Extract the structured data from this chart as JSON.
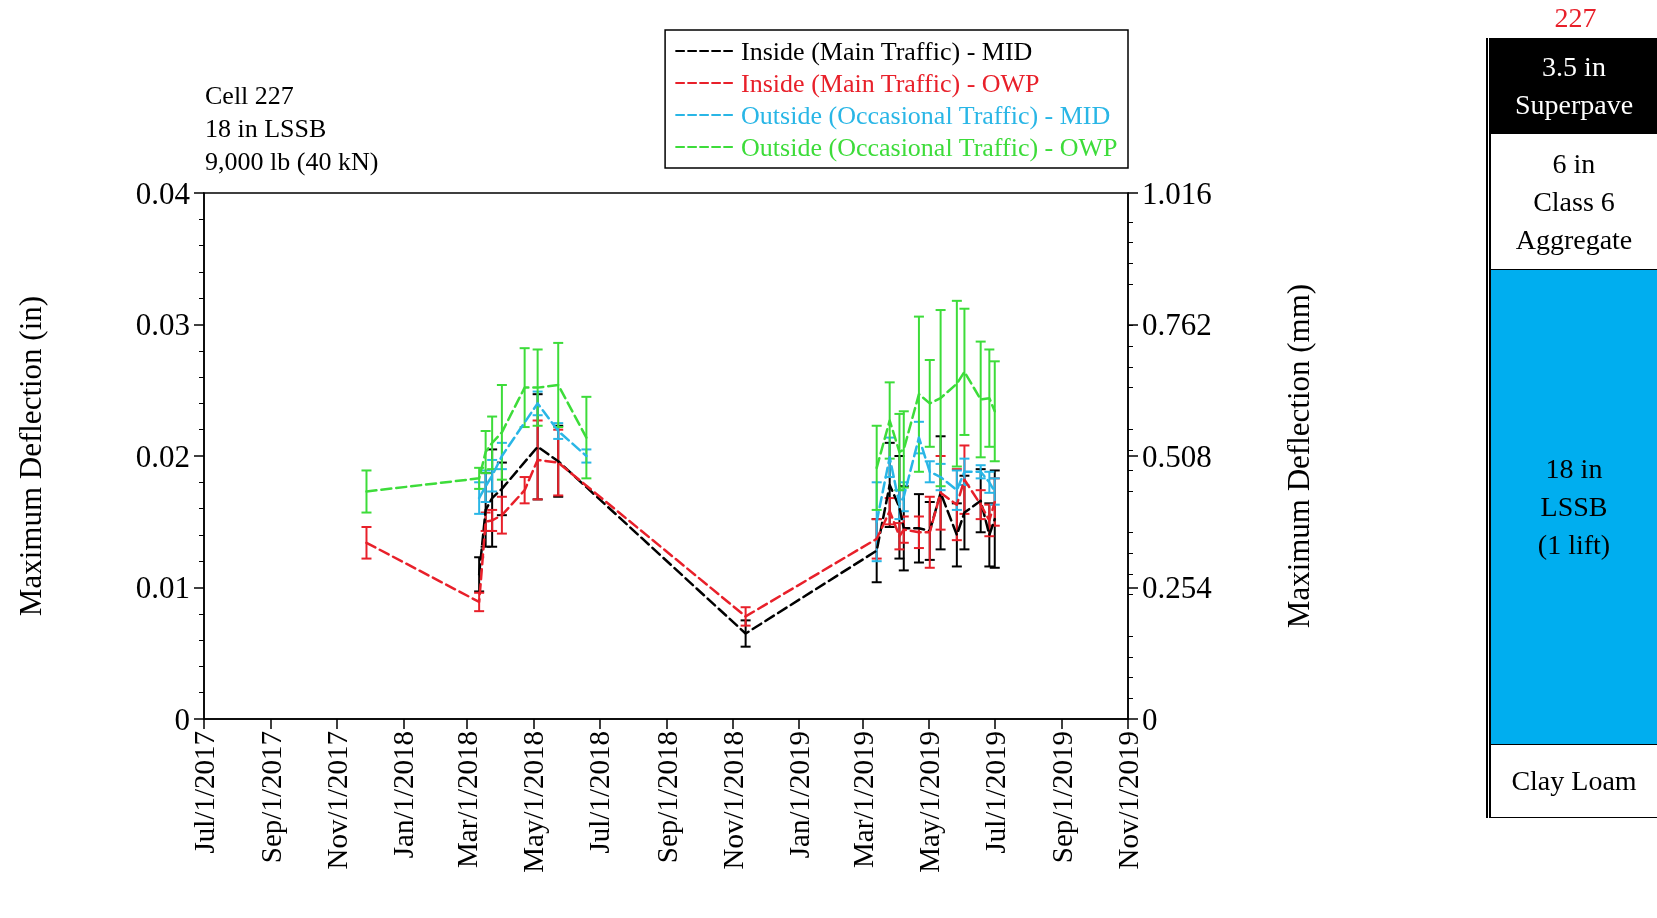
{
  "chart_data": [
    {
      "type": "line",
      "ylabel": "Maximum Deflection (in)",
      "y2label": "Maximum Deflection (mm)",
      "annotations": [
        "Cell 227",
        "18 in LSSB",
        "9,000 lb (40 kN)"
      ],
      "xlim": [
        "2017-07-01",
        "2019-11-01"
      ],
      "xticks": [
        {
          "value": "2017-07-01",
          "label": "Jul/1/2017"
        },
        {
          "value": "2017-09-01",
          "label": "Sep/1/2017"
        },
        {
          "value": "2017-11-01",
          "label": "Nov/1/2017"
        },
        {
          "value": "2018-01-01",
          "label": "Jan/1/2018"
        },
        {
          "value": "2018-03-01",
          "label": "Mar/1/2018"
        },
        {
          "value": "2018-05-01",
          "label": "May/1/2018"
        },
        {
          "value": "2018-07-01",
          "label": "Jul/1/2018"
        },
        {
          "value": "2018-09-01",
          "label": "Sep/1/2018"
        },
        {
          "value": "2018-11-01",
          "label": "Nov/1/2018"
        },
        {
          "value": "2019-01-01",
          "label": "Jan/1/2019"
        },
        {
          "value": "2019-03-01",
          "label": "Mar/1/2019"
        },
        {
          "value": "2019-05-01",
          "label": "May/1/2019"
        },
        {
          "value": "2019-07-01",
          "label": "Jul/1/2019"
        },
        {
          "value": "2019-09-01",
          "label": "Sep/1/2019"
        },
        {
          "value": "2019-11-01",
          "label": "Nov/1/2019"
        }
      ],
      "ylim": [
        0,
        0.04
      ],
      "yticks": [
        0,
        0.01,
        0.02,
        0.03,
        0.04
      ],
      "y2lim": [
        0,
        1.016
      ],
      "y2ticks": [
        0,
        0.254,
        0.508,
        0.762,
        1.016
      ],
      "legend": "top right",
      "marker": "none",
      "line_style": "dashed",
      "series": [
        {
          "name": "Inside (Main Traffic) - MID",
          "color": "#000000",
          "x": [
            "2018-03-12",
            "2018-03-18",
            "2018-03-24",
            "2018-04-02",
            "2018-05-05",
            "2018-05-24",
            "2018-11-13",
            "2019-03-14",
            "2019-03-26",
            "2019-04-04",
            "2019-04-08",
            "2019-04-22",
            "2019-05-02",
            "2019-05-12",
            "2019-05-27",
            "2019-06-03",
            "2019-06-18",
            "2019-06-26",
            "2019-07-01"
          ],
          "values": [
            0.011,
            0.0159,
            0.0168,
            0.0175,
            0.0207,
            0.0196,
            0.0065,
            0.0128,
            0.0178,
            0.0161,
            0.0145,
            0.0145,
            0.0143,
            0.0172,
            0.014,
            0.0157,
            0.0166,
            0.014,
            0.0152
          ],
          "errors": [
            0.0013,
            0.0028,
            0.0037,
            0.002,
            0.004,
            0.0027,
            0.001,
            0.0024,
            0.0032,
            0.0039,
            0.0032,
            0.0026,
            0.0022,
            0.0043,
            0.0024,
            0.0028,
            0.0024,
            0.0024,
            0.0037
          ]
        },
        {
          "name": "Inside (Main Traffic) - OWP",
          "color": "#e8202a",
          "x": [
            "2017-11-28",
            "2018-03-12",
            "2018-03-18",
            "2018-03-24",
            "2018-04-02",
            "2018-04-23",
            "2018-05-05",
            "2018-05-24",
            "2018-11-13",
            "2019-03-14",
            "2019-03-26",
            "2019-04-04",
            "2019-04-08",
            "2019-04-22",
            "2019-05-02",
            "2019-05-12",
            "2019-05-27",
            "2019-06-03",
            "2019-06-18",
            "2019-06-26",
            "2019-07-01"
          ],
          "values": [
            0.0134,
            0.0089,
            0.015,
            0.0151,
            0.0155,
            0.0174,
            0.0197,
            0.0195,
            0.0078,
            0.0137,
            0.0158,
            0.0139,
            0.0144,
            0.0142,
            0.0142,
            0.0172,
            0.0163,
            0.0182,
            0.0163,
            0.0151,
            0.0165
          ],
          "errors": [
            0.0012,
            0.0007,
            0.0007,
            0.0008,
            0.0014,
            0.001,
            0.003,
            0.0025,
            0.0007,
            0.0015,
            0.001,
            0.001,
            0.001,
            0.0012,
            0.0027,
            0.0028,
            0.0027,
            0.0026,
            0.0011,
            0.0012,
            0.0018
          ]
        },
        {
          "name": "Outside (Occasional Traffic) - MID",
          "color": "#29b6e6",
          "x": [
            "2018-03-12",
            "2018-03-18",
            "2018-03-24",
            "2018-04-02",
            "2018-05-05",
            "2018-05-24",
            "2018-06-19",
            "2018-11-13",
            "2019-03-14",
            "2019-03-26",
            "2019-04-04",
            "2019-04-08",
            "2019-04-22",
            "2019-05-02",
            "2019-05-12",
            "2019-05-27",
            "2019-06-03",
            "2019-06-18",
            "2019-06-26",
            "2019-07-01"
          ],
          "values": [
            0.0168,
            0.0177,
            0.0185,
            0.02,
            0.024,
            0.0219,
            0.02,
            null,
            0.015,
            0.0199,
            0.0163,
            0.0169,
            0.0214,
            0.0188,
            0.0184,
            0.0174,
            0.0188,
            0.0188,
            0.018,
            0.0173
          ],
          "errors": [
            0.0012,
            0.0012,
            0.0012,
            0.001,
            0.0009,
            0.0006,
            0.0005,
            null,
            0.003,
            0.0015,
            0.0011,
            0.0011,
            0.0012,
            0.0008,
            0.001,
            0.0015,
            0.001,
            0.0005,
            0.0008,
            0.001
          ]
        },
        {
          "name": "Outside (Occasional Traffic) - OWP",
          "color": "#3ddc3a",
          "x": [
            "2017-11-28",
            "2018-03-12",
            "2018-03-18",
            "2018-03-24",
            "2018-04-02",
            "2018-04-23",
            "2018-05-05",
            "2018-05-24",
            "2018-06-19",
            "2018-11-13",
            "2019-03-14",
            "2019-03-26",
            "2019-04-04",
            "2019-04-08",
            "2019-04-22",
            "2019-05-02",
            "2019-05-12",
            "2019-05-27",
            "2019-06-03",
            "2019-06-18",
            "2019-06-26",
            "2019-07-01"
          ],
          "values": [
            0.0173,
            0.0183,
            0.0203,
            0.021,
            0.0218,
            0.0252,
            0.0252,
            0.0254,
            0.0214,
            null,
            0.0191,
            0.0227,
            0.0203,
            0.0205,
            0.0247,
            0.024,
            0.0244,
            0.0255,
            0.0264,
            0.0243,
            0.0244,
            0.0234
          ],
          "errors": [
            0.0016,
            0.0008,
            0.0016,
            0.002,
            0.0036,
            0.003,
            0.0029,
            0.0032,
            0.0031,
            null,
            0.0032,
            0.0029,
            0.0029,
            0.0029,
            0.0059,
            0.0033,
            0.0067,
            0.0063,
            0.0048,
            0.0044,
            0.0037,
            0.0038
          ]
        }
      ]
    },
    {
      "type": "other",
      "title": "227",
      "annotations": [
        "3.5 in\nSuperpave",
        "6 in\nClass 6\nAggregate",
        "18 in\nLSSB\n(1 lift)",
        "Clay Loam"
      ]
    }
  ]
}
